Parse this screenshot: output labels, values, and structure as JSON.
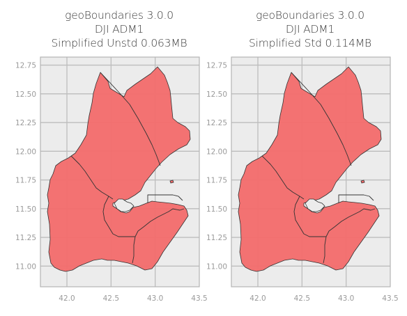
{
  "panels": [
    {
      "title_lines": [
        "geoBoundaries 3.0.0",
        "DJI ADM1",
        "Simplified Unstd 0.063MB"
      ]
    },
    {
      "title_lines": [
        "geoBoundaries 3.0.0",
        "DJI ADM1",
        "Simplified Std 0.114MB"
      ]
    }
  ],
  "axes": {
    "x_ticks": [
      "42.0",
      "42.5",
      "43.0",
      "43.5"
    ],
    "x_tick_values": [
      42.0,
      42.5,
      43.0,
      43.5
    ],
    "y_ticks": [
      "11.00",
      "11.25",
      "11.50",
      "11.75",
      "12.00",
      "12.25",
      "12.50",
      "12.75"
    ],
    "y_tick_values": [
      11.0,
      11.25,
      11.5,
      11.75,
      12.0,
      12.25,
      12.5,
      12.75
    ],
    "xlim": [
      41.7,
      43.5
    ],
    "ylim": [
      10.82,
      12.82
    ]
  },
  "style": {
    "fill": "#f36b6b",
    "edge": "#333333",
    "plot_background": "#ececec",
    "grid": "#bdbdbd",
    "frame": "#b5b5b5"
  }
}
